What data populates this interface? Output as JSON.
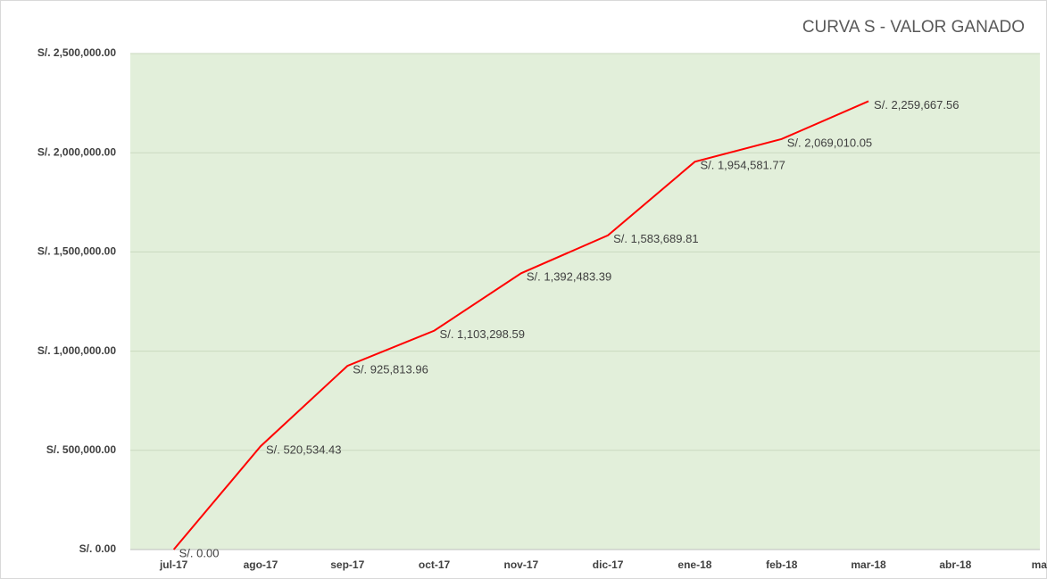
{
  "chart_data": {
    "type": "line",
    "title": "CURVA S  -  VALOR GANADO",
    "categories": [
      "jul-17",
      "ago-17",
      "sep-17",
      "oct-17",
      "nov-17",
      "dic-17",
      "ene-18",
      "feb-18",
      "mar-18",
      "abr-18",
      "may"
    ],
    "series": [
      {
        "name": "Valor ganado",
        "color": "#ff0000",
        "values": [
          0,
          520534.43,
          925813.96,
          1103298.59,
          1392483.39,
          1583689.81,
          1954581.77,
          2069010.05,
          2259667.56,
          null,
          null
        ],
        "value_labels": [
          "S/. 0.00",
          "S/. 520,534.43",
          "S/. 925,813.96",
          "S/. 1,103,298.59",
          "S/. 1,392,483.39",
          "S/. 1,583,689.81",
          "S/. 1,954,581.77",
          "S/. 2,069,010.05",
          "S/. 2,259,667.56",
          null,
          null
        ]
      }
    ],
    "ylim": [
      0,
      2500000
    ],
    "yticks": [
      {
        "value": 0,
        "label": "S/. 0.00"
      },
      {
        "value": 500000,
        "label": "S/. 500,000.00"
      },
      {
        "value": 1000000,
        "label": "S/. 1,000,000.00"
      },
      {
        "value": 1500000,
        "label": "S/. 1,500,000.00"
      },
      {
        "value": 2000000,
        "label": "S/. 2,000,000.00"
      },
      {
        "value": 2500000,
        "label": "S/. 2,500,000.00"
      }
    ],
    "grid": true,
    "plot_color": "#e2efda"
  }
}
